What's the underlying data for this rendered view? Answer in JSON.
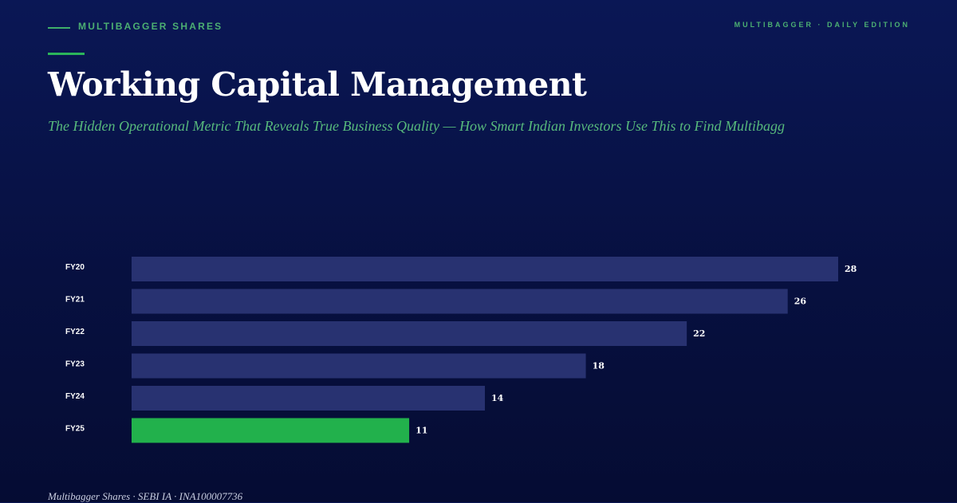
{
  "header": {
    "brand": "MULTIBAGGER SHARES",
    "edition": "MULTIBAGGER · DAILY EDITION"
  },
  "article": {
    "title": "Working Capital Management",
    "subtitle": "The Hidden Operational Metric That Reveals True Business Quality — How Smart Indian Investors Use This to Find Multibagg"
  },
  "footer": {
    "text": "Multibagger Shares · SEBI IA · INA100007736"
  },
  "colors": {
    "bar": "#283271",
    "highlight": "#22b14c",
    "accent": "#4caf72"
  },
  "chart_data": {
    "type": "bar",
    "orientation": "horizontal",
    "categories": [
      "FY20",
      "FY21",
      "FY22",
      "FY23",
      "FY24",
      "FY25"
    ],
    "values": [
      28,
      26,
      22,
      18,
      14,
      11
    ],
    "highlight_category": "FY25",
    "xlim": [
      0,
      28
    ],
    "grid": false,
    "legend": "none"
  }
}
